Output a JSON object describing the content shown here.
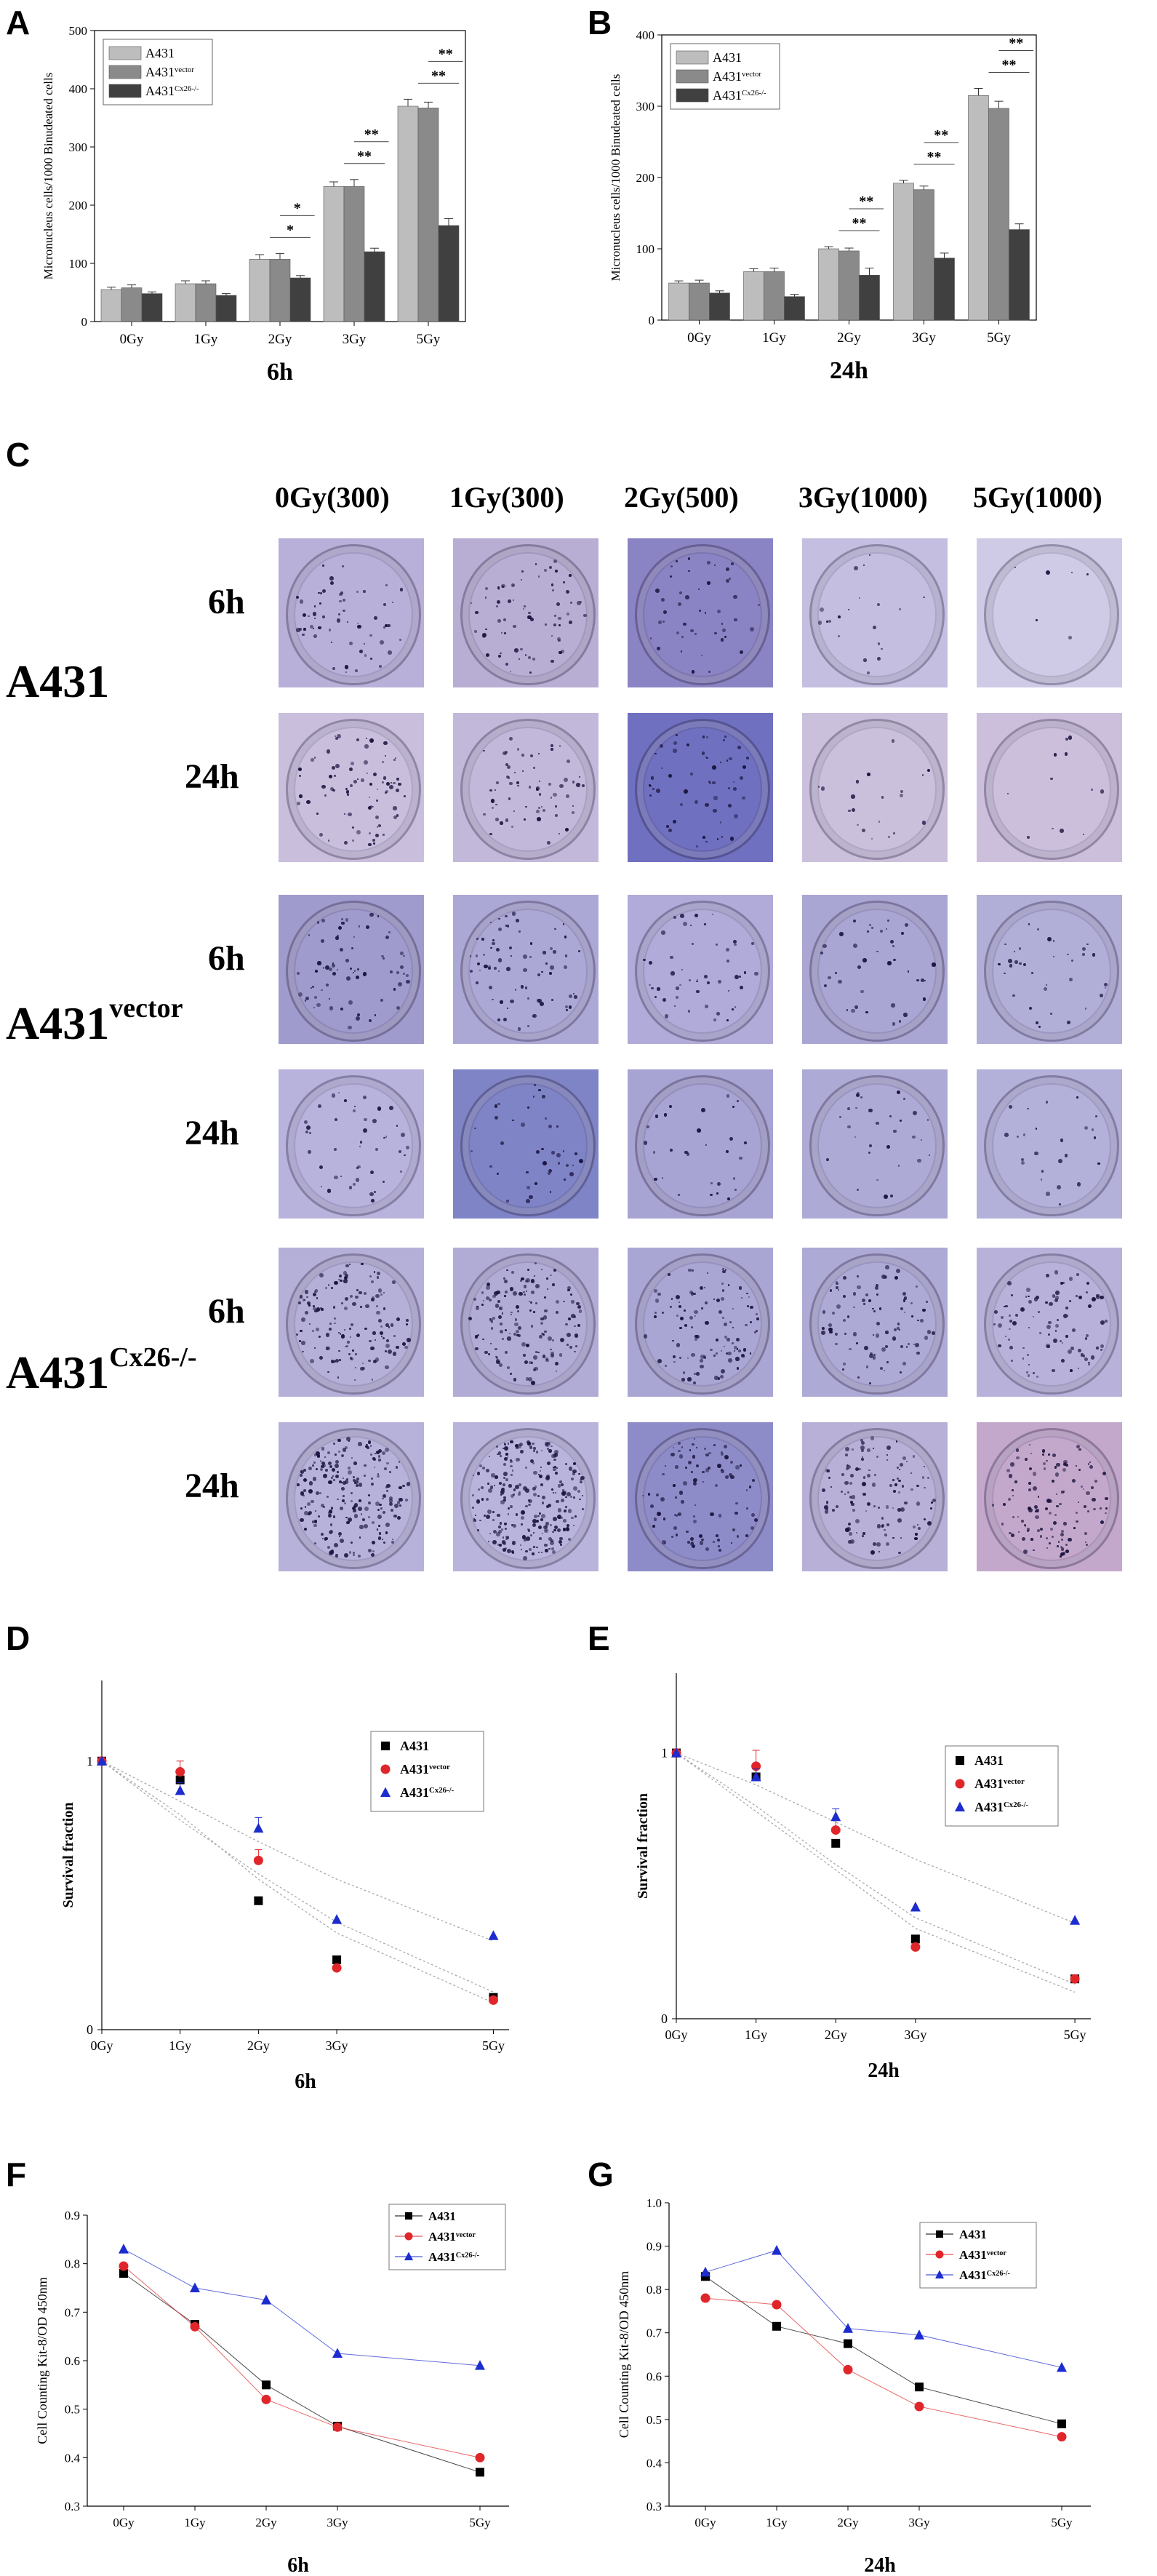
{
  "panels": {
    "a": "A",
    "b": "B",
    "c": "C",
    "d": "D",
    "e": "E",
    "f": "F",
    "g": "G"
  },
  "colony": {
    "columns": [
      "0Gy(300)",
      "1Gy(300)",
      "2Gy(500)",
      "3Gy(1000)",
      "5Gy(1000)"
    ],
    "times": [
      "6h",
      "24h"
    ],
    "lines": [
      {
        "base": "A431",
        "sup": ""
      },
      {
        "base": "A431",
        "sup": "vector"
      },
      {
        "base": "A431",
        "sup": "Cx26-/-"
      }
    ],
    "colors": [
      [
        "#b8b0d8",
        "#b8aed4",
        "#8a84c4",
        "#c4bfe0",
        "#cfcbe6"
      ],
      [
        "#c9bfdd",
        "#c2b8da",
        "#6f70c0",
        "#cbc0dc",
        "#ccbfdc"
      ],
      [
        "#9f9bcc",
        "#aca8d6",
        "#b0abd8",
        "#aaa6d4",
        "#b1aed8"
      ],
      [
        "#b7b3dd",
        "#7f84c6",
        "#a7a3d2",
        "#aeaad6",
        "#b3b0da"
      ],
      [
        "#b5b0d8",
        "#b1acd6",
        "#aaa6d4",
        "#aeaad6",
        "#b8b2da"
      ],
      [
        "#b6b2da",
        "#b8b4dc",
        "#8e8cc8",
        "#b8b0d6",
        "#c4a8cc"
      ]
    ],
    "density": [
      [
        60,
        70,
        45,
        20,
        6
      ],
      [
        80,
        65,
        55,
        20,
        12
      ],
      [
        70,
        75,
        50,
        40,
        35
      ],
      [
        45,
        40,
        30,
        30,
        25
      ],
      [
        140,
        150,
        110,
        90,
        95
      ],
      [
        220,
        260,
        100,
        120,
        120
      ]
    ]
  },
  "chart_data": [
    {
      "id": "A",
      "type": "bar",
      "categories": [
        "0Gy",
        "1Gy",
        "2Gy",
        "3Gy",
        "5Gy"
      ],
      "series": [
        {
          "name": "A431",
          "values": [
            55,
            65,
            107,
            232,
            370
          ],
          "errors": [
            4,
            5,
            8,
            8,
            12
          ],
          "color": "#bdbdbd"
        },
        {
          "name": "A431 vector",
          "values": [
            58,
            65,
            107,
            232,
            367
          ],
          "errors": [
            5,
            5,
            10,
            12,
            10
          ],
          "color": "#8a8a8a"
        },
        {
          "name": "A431 Cx26-/-",
          "values": [
            48,
            45,
            75,
            120,
            165
          ],
          "errors": [
            3,
            3,
            4,
            6,
            12
          ],
          "color": "#404040"
        }
      ],
      "ylabel": "Micronucleus cells/1000 Binudeated cells",
      "xlabel": "6h",
      "ylim": [
        0,
        500
      ],
      "yticks": [
        0,
        100,
        200,
        300,
        400,
        500
      ],
      "legend": {
        "items": [
          {
            "base": "A431",
            "sup": ""
          },
          {
            "base": "A431",
            "sup": "vector"
          },
          {
            "base": "A431",
            "sup": "Cx26-/-"
          }
        ]
      },
      "annotations": [
        {
          "label": "*",
          "level": "low",
          "cat": 2
        },
        {
          "label": "*",
          "level": "high",
          "cat": 2
        },
        {
          "label": "**",
          "level": "low",
          "cat": 3
        },
        {
          "label": "**",
          "level": "high",
          "cat": 3
        },
        {
          "label": "**",
          "level": "low",
          "cat": 4
        },
        {
          "label": "**",
          "level": "high",
          "cat": 4
        }
      ]
    },
    {
      "id": "B",
      "type": "bar",
      "categories": [
        "0Gy",
        "1Gy",
        "2Gy",
        "3Gy",
        "5Gy"
      ],
      "series": [
        {
          "name": "A431",
          "values": [
            52,
            68,
            100,
            192,
            315
          ],
          "errors": [
            3,
            4,
            3,
            4,
            10
          ],
          "color": "#bdbdbd"
        },
        {
          "name": "A431 vector",
          "values": [
            52,
            68,
            97,
            183,
            297
          ],
          "errors": [
            4,
            5,
            4,
            5,
            10
          ],
          "color": "#8a8a8a"
        },
        {
          "name": "A431 Cx26-/-",
          "values": [
            38,
            33,
            63,
            87,
            127
          ],
          "errors": [
            3,
            3,
            10,
            7,
            8
          ],
          "color": "#404040"
        }
      ],
      "ylabel": "Micronucleus cells/1000 Binudeated cells",
      "xlabel": "24h",
      "ylim": [
        0,
        400
      ],
      "yticks": [
        0,
        100,
        200,
        300,
        400
      ],
      "legend": {
        "items": [
          {
            "base": "A431",
            "sup": ""
          },
          {
            "base": "A431",
            "sup": "vector"
          },
          {
            "base": "A431",
            "sup": "Cx26-/-"
          }
        ]
      },
      "annotations": [
        {
          "label": "**",
          "level": "low",
          "cat": 2
        },
        {
          "label": "**",
          "level": "high",
          "cat": 2
        },
        {
          "label": "**",
          "level": "low",
          "cat": 3
        },
        {
          "label": "**",
          "level": "high",
          "cat": 3
        },
        {
          "label": "**",
          "level": "low",
          "cat": 4
        },
        {
          "label": "**",
          "level": "high",
          "cat": 4
        }
      ]
    },
    {
      "id": "D",
      "type": "scatter",
      "x": [
        0,
        1,
        2,
        3,
        5
      ],
      "xticks": [
        "0Gy",
        "1Gy",
        "2Gy",
        "3Gy",
        "5Gy"
      ],
      "series": [
        {
          "name": "A431",
          "values": [
            1.0,
            0.93,
            0.48,
            0.26,
            0.12
          ],
          "errors": [
            0,
            0.03,
            0,
            0,
            0
          ],
          "color": "#000000",
          "marker": "square",
          "fit": [
            1.0,
            0.78,
            0.58,
            0.4,
            0.14
          ]
        },
        {
          "name": "A431 vector",
          "values": [
            1.0,
            0.96,
            0.63,
            0.23,
            0.11
          ],
          "errors": [
            0,
            0.04,
            0.04,
            0,
            0
          ],
          "color": "#e0262a",
          "marker": "circle",
          "fit": [
            1.0,
            0.8,
            0.56,
            0.36,
            0.1
          ]
        },
        {
          "name": "A431 Cx26-/-",
          "values": [
            1.0,
            0.89,
            0.75,
            0.41,
            0.35
          ],
          "errors": [
            0,
            0.03,
            0.04,
            0,
            0
          ],
          "color": "#1c2ccf",
          "marker": "triangle",
          "fit": [
            1.0,
            0.85,
            0.7,
            0.56,
            0.33
          ]
        }
      ],
      "ylabel": "Survival fraction",
      "xlabel": "6h",
      "ylim": [
        0,
        1.3
      ],
      "yticks": [
        {
          "v": 0,
          "label": "0"
        },
        {
          "v": 1,
          "label": "1"
        }
      ],
      "legend": {
        "items": [
          {
            "base": "A431",
            "sup": ""
          },
          {
            "base": "A431",
            "sup": "vector"
          },
          {
            "base": "A431",
            "sup": "Cx26-/-"
          }
        ]
      }
    },
    {
      "id": "E",
      "type": "scatter",
      "x": [
        0,
        1,
        2,
        3,
        5
      ],
      "xticks": [
        "0Gy",
        "1Gy",
        "2Gy",
        "3Gy",
        "5Gy"
      ],
      "series": [
        {
          "name": "A431",
          "values": [
            1.0,
            0.91,
            0.66,
            0.3,
            0.15
          ],
          "errors": [
            0,
            0.03,
            0,
            0,
            0
          ],
          "color": "#000000",
          "marker": "square",
          "fit": [
            1.0,
            0.8,
            0.58,
            0.38,
            0.13
          ]
        },
        {
          "name": "A431 vector",
          "values": [
            1.0,
            0.95,
            0.71,
            0.27,
            0.15
          ],
          "errors": [
            0,
            0.06,
            0.04,
            0,
            0
          ],
          "color": "#e0262a",
          "marker": "circle",
          "fit": [
            1.0,
            0.78,
            0.56,
            0.34,
            0.1
          ]
        },
        {
          "name": "A431 Cx26-/-",
          "values": [
            1.0,
            0.91,
            0.76,
            0.42,
            0.37
          ],
          "errors": [
            0,
            0.03,
            0.03,
            0,
            0
          ],
          "color": "#1c2ccf",
          "marker": "triangle",
          "fit": [
            1.0,
            0.88,
            0.74,
            0.6,
            0.36
          ]
        }
      ],
      "ylabel": "Survival fraction",
      "xlabel": "24h",
      "ylim": [
        0,
        1.3
      ],
      "yticks": [
        {
          "v": 0,
          "label": "0"
        },
        {
          "v": 1,
          "label": "1"
        }
      ],
      "legend": {
        "items": [
          {
            "base": "A431",
            "sup": ""
          },
          {
            "base": "A431",
            "sup": "vector"
          },
          {
            "base": "A431",
            "sup": "Cx26-/-"
          }
        ]
      }
    },
    {
      "id": "F",
      "type": "line",
      "x": [
        0,
        1,
        2,
        3,
        5
      ],
      "xticks": [
        "0Gy",
        "1Gy",
        "2Gy",
        "3Gy",
        "5Gy"
      ],
      "series": [
        {
          "name": "A431",
          "values": [
            0.78,
            0.675,
            0.55,
            0.465,
            0.37
          ],
          "color": "#000000",
          "marker": "square"
        },
        {
          "name": "A431 vector",
          "values": [
            0.795,
            0.67,
            0.52,
            0.463,
            0.4
          ],
          "color": "#e0262a",
          "marker": "circle"
        },
        {
          "name": "A431 Cx26-/-",
          "values": [
            0.83,
            0.75,
            0.725,
            0.615,
            0.59
          ],
          "color": "#1c2ccf",
          "marker": "triangle"
        }
      ],
      "ylabel": "Cell Counting Kit-8/OD 450nm",
      "xlabel": "6h",
      "ylim": [
        0.3,
        0.9
      ],
      "yticks": [
        0.3,
        0.4,
        0.5,
        0.6,
        0.7,
        0.8,
        0.9
      ],
      "legend": {
        "items": [
          {
            "base": "A431",
            "sup": ""
          },
          {
            "base": "A431",
            "sup": "vector"
          },
          {
            "base": "A431",
            "sup": "Cx26-/-"
          }
        ]
      }
    },
    {
      "id": "G",
      "type": "line",
      "x": [
        0,
        1,
        2,
        3,
        5
      ],
      "xticks": [
        "0Gy",
        "1Gy",
        "2Gy",
        "3Gy",
        "5Gy"
      ],
      "series": [
        {
          "name": "A431",
          "values": [
            0.83,
            0.715,
            0.675,
            0.575,
            0.49
          ],
          "color": "#000000",
          "marker": "square"
        },
        {
          "name": "A431 vector",
          "values": [
            0.78,
            0.765,
            0.615,
            0.53,
            0.46
          ],
          "color": "#e0262a",
          "marker": "circle"
        },
        {
          "name": "A431 Cx26-/-",
          "values": [
            0.84,
            0.89,
            0.71,
            0.695,
            0.62
          ],
          "color": "#1c2ccf",
          "marker": "triangle"
        }
      ],
      "ylabel": "Cell Counting Kit-8/OD 450nm",
      "xlabel": "24h",
      "ylim": [
        0.3,
        1.0
      ],
      "yticks": [
        0.3,
        0.4,
        0.5,
        0.6,
        0.7,
        0.8,
        0.9,
        1.0
      ],
      "legend": {
        "items": [
          {
            "base": "A431",
            "sup": ""
          },
          {
            "base": "A431",
            "sup": "vector"
          },
          {
            "base": "A431",
            "sup": "Cx26-/-"
          }
        ]
      }
    }
  ]
}
